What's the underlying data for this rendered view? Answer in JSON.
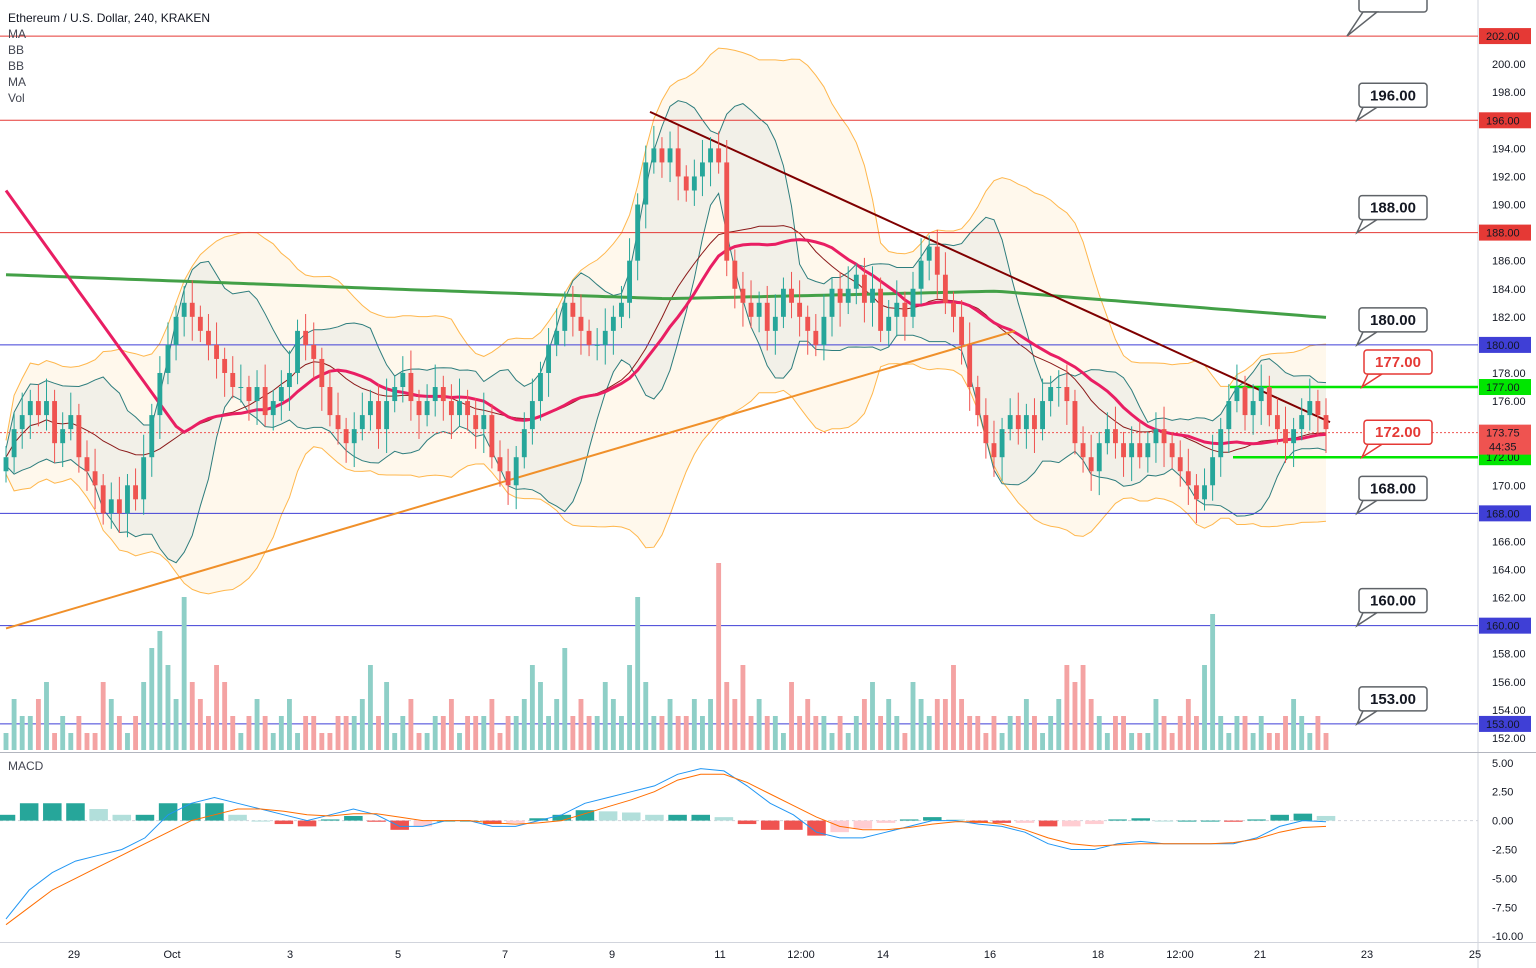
{
  "header": {
    "title": "Ethereum / U.S. Dollar, 240, KRAKEN",
    "indicators": [
      "MA",
      "BB",
      "BB",
      "MA",
      "Vol"
    ],
    "macd_label": "MACD"
  },
  "colors": {
    "up": "#26a69a",
    "down": "#ef5350",
    "up_vol": "#8ecfc7",
    "down_vol": "#f4a3a3",
    "resistance_red": "#e53935",
    "support_blue": "#3f3fd6",
    "green_level": "#00e600",
    "ma_green": "#43a047",
    "ma_pink": "#e91e63",
    "bb_orange": "#ffb74d",
    "bb_teal": "#2e7d7d",
    "trend_dark": "#7f0000",
    "trend_orange": "#f0902a",
    "macd_line": "#2196f3",
    "signal_line": "#ff6d00"
  },
  "chart_data": [
    {
      "type": "candlestick",
      "title": "Ethereum / U.S. Dollar, 240, KRAKEN",
      "xlabel": "",
      "ylabel": "",
      "ylim": [
        151,
        204
      ],
      "x_tick_labels": [
        "29",
        "Oct",
        "3",
        "5",
        "7",
        "9",
        "11",
        "12:00",
        "14",
        "16",
        "18",
        "12:00",
        "21",
        "23",
        "25"
      ],
      "y_tick_labels": [
        "152.00",
        "154.00",
        "156.00",
        "158.00",
        "160.00",
        "162.00",
        "164.00",
        "166.00",
        "168.00",
        "170.00",
        "172.00",
        "174.00",
        "176.00",
        "178.00",
        "180.00",
        "182.00",
        "184.00",
        "186.00",
        "188.00",
        "190.00",
        "192.00",
        "194.00",
        "196.00",
        "198.00",
        "200.00",
        "202.00"
      ],
      "close_series": [
        172,
        174,
        175,
        176,
        175,
        176,
        173,
        174,
        175,
        172,
        171,
        170,
        168,
        169,
        168,
        170,
        169,
        172,
        175,
        178,
        180,
        182,
        183,
        182,
        181,
        180,
        179,
        178,
        177,
        177,
        176,
        177,
        175,
        176,
        177,
        178,
        181,
        180,
        179,
        177,
        175,
        174,
        173,
        174,
        175,
        176,
        174,
        176,
        177,
        178,
        176,
        175,
        176,
        177,
        176,
        175,
        176,
        175,
        174,
        175,
        172,
        171,
        170,
        172,
        174,
        176,
        178,
        180,
        181,
        183,
        182,
        181,
        180,
        180,
        181,
        182,
        183,
        186,
        190,
        193,
        194,
        193,
        194,
        192,
        191,
        192,
        193,
        194,
        193,
        186,
        184,
        183,
        182,
        183,
        181,
        182,
        184,
        183,
        182,
        181,
        180,
        182,
        184,
        183,
        184,
        185,
        183,
        184,
        181,
        182,
        183,
        182,
        184,
        186,
        187,
        185,
        183,
        182,
        180,
        177,
        175,
        173,
        172,
        174,
        175,
        174,
        175,
        174,
        176,
        177,
        177,
        176,
        173,
        172,
        171,
        173,
        174,
        173,
        172,
        173,
        172,
        173,
        174,
        173,
        172,
        171,
        170,
        169,
        170,
        172,
        174,
        176,
        177,
        175,
        176,
        177,
        175,
        174,
        173,
        174,
        175,
        176,
        175,
        174
      ],
      "volume_series": [
        1,
        3,
        2,
        2,
        3,
        4,
        1,
        2,
        1,
        2,
        1,
        1,
        4,
        3,
        2,
        1,
        2,
        4,
        6,
        7,
        5,
        3,
        9,
        4,
        3,
        2,
        5,
        4,
        2,
        1,
        2,
        3,
        2,
        1,
        2,
        3,
        1,
        2,
        2,
        1,
        1,
        2,
        2,
        2,
        3,
        5,
        2,
        4,
        1,
        2,
        3,
        1,
        1,
        2,
        2,
        3,
        1,
        2,
        2,
        2,
        3,
        1,
        2,
        2,
        3,
        5,
        4,
        2,
        3,
        6,
        2,
        3,
        2,
        2,
        4,
        3,
        2,
        5,
        9,
        4,
        2,
        2,
        3,
        2,
        2,
        3,
        2,
        3,
        11,
        4,
        3,
        5,
        2,
        3,
        2,
        2,
        1,
        4,
        2,
        3,
        2,
        2,
        1,
        2,
        1,
        2,
        3,
        4,
        2,
        3,
        2,
        1,
        4,
        3,
        2,
        3,
        3,
        5,
        3,
        2,
        2,
        1,
        2,
        1,
        2,
        2,
        3,
        2,
        1,
        2,
        3,
        5,
        4,
        5,
        3,
        2,
        1,
        2,
        2,
        1,
        1,
        1,
        3,
        2,
        1,
        2,
        3,
        2,
        5,
        8,
        2,
        1,
        2,
        2,
        1,
        2,
        1,
        1,
        2,
        3,
        2,
        1,
        2,
        1
      ],
      "resistance_levels": [
        {
          "value": 202,
          "label": "202.00"
        },
        {
          "value": 196,
          "label": "196.00"
        },
        {
          "value": 188,
          "label": "188.00"
        }
      ],
      "support_levels": [
        {
          "value": 180,
          "label": "180.00"
        },
        {
          "value": 168,
          "label": "168.00"
        },
        {
          "value": 160,
          "label": "160.00"
        },
        {
          "value": 153,
          "label": "153.00"
        }
      ],
      "green_levels": [
        {
          "value": 177,
          "label": "177.00"
        },
        {
          "value": 172,
          "label": "172.00"
        }
      ],
      "current_price": {
        "value": 173.75,
        "label": "173.75",
        "countdown": "44:35"
      },
      "callouts": [
        {
          "value": 196,
          "label": "196.00",
          "style": "black"
        },
        {
          "value": 188,
          "label": "188.00",
          "style": "black"
        },
        {
          "value": 180,
          "label": "180.00",
          "style": "black"
        },
        {
          "value": 177,
          "label": "177.00",
          "style": "red"
        },
        {
          "value": 172,
          "label": "172.00",
          "style": "red"
        },
        {
          "value": 168,
          "label": "168.00",
          "style": "black"
        },
        {
          "value": 160,
          "label": "160.00",
          "style": "black"
        },
        {
          "value": 153,
          "label": "153.00",
          "style": "black"
        }
      ]
    },
    {
      "type": "macd",
      "title": "MACD",
      "ylim": [
        -10.5,
        5.5
      ],
      "y_tick_labels": [
        "5.00",
        "2.50",
        "0.00",
        "-2.50",
        "-5.00",
        "-7.50",
        "-10.00"
      ],
      "macd_series": [
        -8.5,
        -6,
        -4.5,
        -3.5,
        -3,
        -2.5,
        -1.5,
        0.5,
        1.5,
        2,
        1.5,
        1,
        0.5,
        0,
        0.5,
        1,
        0.5,
        -0.5,
        -0.5,
        0,
        0,
        -0.5,
        -0.5,
        0,
        0.5,
        1.5,
        2,
        2.5,
        3,
        4,
        4.5,
        4.3,
        3,
        1.5,
        0.5,
        -1,
        -1.5,
        -1.5,
        -1,
        -0.5,
        0,
        0,
        -0.3,
        -0.5,
        -1,
        -2,
        -2.5,
        -2.5,
        -2,
        -1.8,
        -2,
        -2,
        -2,
        -2,
        -1.5,
        -0.5,
        0,
        -0.1
      ],
      "signal_series": [
        -9,
        -7.5,
        -6,
        -5,
        -4,
        -3,
        -2,
        -1,
        0,
        0.5,
        1,
        1,
        0.8,
        0.5,
        0.4,
        0.6,
        0.6,
        0.3,
        0,
        0,
        0,
        -0.2,
        -0.3,
        -0.2,
        0,
        0.6,
        1.2,
        1.8,
        2.5,
        3.5,
        4,
        4,
        3.3,
        2.3,
        1.3,
        0.3,
        -0.5,
        -0.8,
        -0.8,
        -0.6,
        -0.3,
        -0.1,
        -0.1,
        -0.3,
        -0.8,
        -1.5,
        -2,
        -2.2,
        -2.1,
        -2,
        -2,
        -2,
        -2,
        -1.9,
        -1.6,
        -1,
        -0.6,
        -0.5
      ]
    }
  ]
}
